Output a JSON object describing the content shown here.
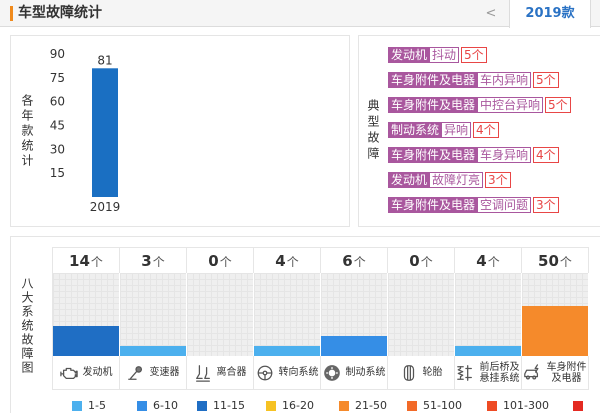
{
  "header": {
    "title": "车型故障统计",
    "prev_label": "<",
    "tabs": [
      {
        "label": "2019款"
      }
    ],
    "accent_color": "#f08a1c",
    "tab_text_color": "#2a72c4"
  },
  "typical_faults": {
    "side_label": "典型故障",
    "tag_color": "#a9579e",
    "count_color": "#e84646",
    "items": [
      {
        "system": "发动机",
        "issue": "抖动",
        "count": "5个"
      },
      {
        "system": "车身附件及电器",
        "issue": "车内异响",
        "count": "5个"
      },
      {
        "system": "车身附件及电器",
        "issue": "中控台异响",
        "count": "5个"
      },
      {
        "system": "制动系统",
        "issue": "异响",
        "count": "4个"
      },
      {
        "system": "车身附件及电器",
        "issue": "车身异响",
        "count": "4个"
      },
      {
        "system": "发动机",
        "issue": "故障灯亮",
        "count": "3个"
      },
      {
        "system": "车身附件及电器",
        "issue": "空调问题",
        "count": "3个"
      }
    ]
  },
  "chart_data": [
    {
      "type": "bar",
      "title": "各年款统计",
      "categories": [
        "2019"
      ],
      "values": [
        81
      ],
      "yticks": [
        15,
        30,
        45,
        60,
        75,
        90
      ],
      "ylim": [
        0,
        90
      ],
      "grid": false,
      "color": "#1a6fc2"
    },
    {
      "type": "bar",
      "title": "八大系统故障图",
      "categories": [
        "发动机",
        "变速器",
        "离合器",
        "转向系统",
        "制动系统",
        "轮胎",
        "前后桥及悬挂系统",
        "车身附件及电器"
      ],
      "category_icons": [
        "engine-icon",
        "transmission-icon",
        "clutch-icon",
        "steering-wheel-icon",
        "brake-disc-icon",
        "tire-icon",
        "suspension-icon",
        "car-electrical-icon"
      ],
      "values": [
        14,
        3,
        0,
        4,
        6,
        0,
        4,
        50
      ],
      "unit": "个",
      "legend_placement": "bottom",
      "legend": [
        {
          "label": "1-5",
          "color": "#4cb0ee"
        },
        {
          "label": "6-10",
          "color": "#358ee6"
        },
        {
          "label": "11-15",
          "color": "#1f6ec4"
        },
        {
          "label": "16-20",
          "color": "#f6c223"
        },
        {
          "label": "21-50",
          "color": "#f58a2b"
        },
        {
          "label": "51-100",
          "color": "#f26a28"
        },
        {
          "label": "101-300",
          "color": "#ee4b24"
        },
        {
          "label": "",
          "color": "#e42a22"
        }
      ]
    }
  ]
}
